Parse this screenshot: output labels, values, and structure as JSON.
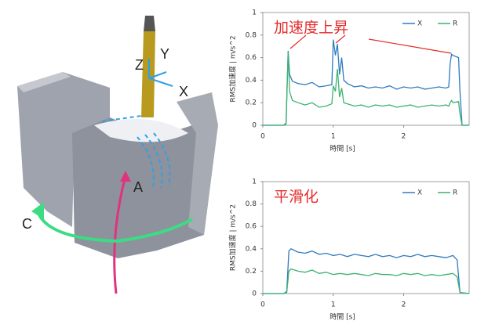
{
  "illustration": {
    "labels": [
      "Z",
      "Y",
      "X",
      "A",
      "C"
    ]
  },
  "chart_data": [
    {
      "type": "line",
      "annotation": "加速度上昇",
      "ylabel": "RMS加速度 | m/s^2",
      "xlabel": "時間 [s]",
      "x": [
        0,
        0.3,
        0.33,
        0.36,
        0.38,
        0.42,
        0.5,
        0.6,
        0.7,
        0.8,
        0.9,
        0.98,
        1.0,
        1.03,
        1.06,
        1.09,
        1.12,
        1.15,
        1.2,
        1.3,
        1.4,
        1.5,
        1.6,
        1.7,
        1.8,
        1.9,
        2.0,
        2.1,
        2.2,
        2.3,
        2.4,
        2.5,
        2.6,
        2.64,
        2.66,
        2.68,
        2.7,
        2.78,
        2.8,
        2.83,
        2.93
      ],
      "series": [
        {
          "name": "X",
          "color": "#2f7bbf",
          "values": [
            0,
            0,
            0.02,
            0.66,
            0.45,
            0.39,
            0.37,
            0.36,
            0.38,
            0.34,
            0.35,
            0.36,
            0.76,
            0.62,
            0.72,
            0.45,
            0.6,
            0.4,
            0.37,
            0.34,
            0.35,
            0.33,
            0.34,
            0.33,
            0.35,
            0.32,
            0.34,
            0.33,
            0.34,
            0.32,
            0.33,
            0.34,
            0.33,
            0.34,
            0.55,
            0.63,
            0.62,
            0.6,
            0.3,
            0,
            0
          ]
        },
        {
          "name": "R",
          "color": "#3cb36e",
          "values": [
            0,
            0,
            0.01,
            0.65,
            0.3,
            0.22,
            0.2,
            0.18,
            0.2,
            0.16,
            0.17,
            0.19,
            0.35,
            0.3,
            0.5,
            0.25,
            0.33,
            0.2,
            0.19,
            0.17,
            0.18,
            0.16,
            0.18,
            0.17,
            0.18,
            0.16,
            0.17,
            0.18,
            0.16,
            0.17,
            0.18,
            0.17,
            0.18,
            0.17,
            0.2,
            0.22,
            0.2,
            0.21,
            0.1,
            0,
            0
          ]
        }
      ],
      "xlim": [
        0,
        2.93
      ],
      "xticks": [
        0,
        1,
        2
      ],
      "ylim": [
        0,
        1
      ],
      "yticks": [
        0,
        0.2,
        0.4,
        0.6,
        0.8,
        1
      ],
      "legend": "upper right"
    },
    {
      "type": "line",
      "annotation": "平滑化",
      "ylabel": "RMS加速度 | m/s^2",
      "xlabel": "時間 [s]",
      "x": [
        0,
        0.3,
        0.34,
        0.37,
        0.4,
        0.5,
        0.6,
        0.7,
        0.8,
        0.9,
        1.0,
        1.1,
        1.2,
        1.3,
        1.4,
        1.5,
        1.6,
        1.7,
        1.8,
        1.9,
        2.0,
        2.1,
        2.2,
        2.3,
        2.4,
        2.5,
        2.6,
        2.7,
        2.76,
        2.8,
        2.93
      ],
      "series": [
        {
          "name": "X",
          "color": "#2f7bbf",
          "values": [
            0,
            0,
            0.02,
            0.38,
            0.4,
            0.37,
            0.36,
            0.38,
            0.35,
            0.36,
            0.34,
            0.35,
            0.33,
            0.35,
            0.34,
            0.33,
            0.35,
            0.33,
            0.34,
            0.32,
            0.34,
            0.33,
            0.35,
            0.33,
            0.34,
            0.33,
            0.32,
            0.34,
            0.3,
            0.01,
            0
          ]
        },
        {
          "name": "R",
          "color": "#3cb36e",
          "values": [
            0,
            0,
            0.01,
            0.2,
            0.22,
            0.2,
            0.19,
            0.21,
            0.18,
            0.19,
            0.17,
            0.18,
            0.17,
            0.18,
            0.17,
            0.16,
            0.18,
            0.17,
            0.17,
            0.16,
            0.18,
            0.17,
            0.18,
            0.16,
            0.17,
            0.16,
            0.17,
            0.18,
            0.15,
            0.01,
            0
          ]
        }
      ],
      "xlim": [
        0,
        2.93
      ],
      "xticks": [
        0,
        1,
        2
      ],
      "ylim": [
        0,
        1
      ],
      "yticks": [
        0,
        0.2,
        0.4,
        0.6,
        0.8,
        1
      ],
      "legend": "upper right"
    }
  ]
}
